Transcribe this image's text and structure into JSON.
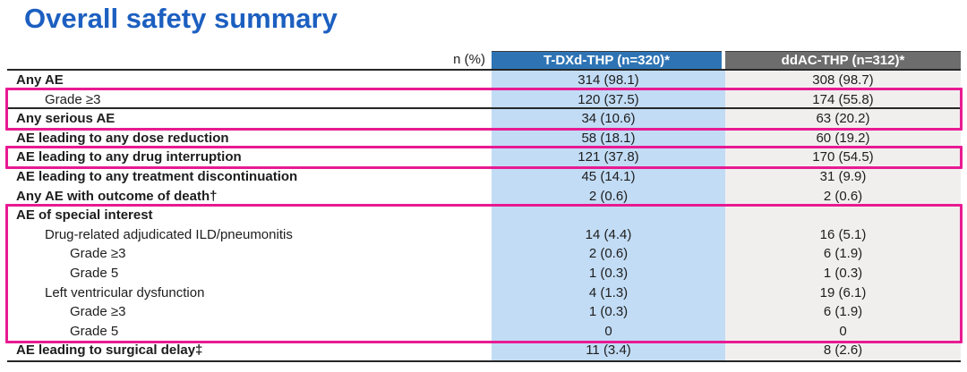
{
  "title": "Overall safety summary",
  "colors": {
    "title_blue": "#1c5fc0",
    "header_blue": "#2e74b5",
    "header_gray": "#6e6d6d",
    "col1_bg": "#c2dcf5",
    "col2_bg": "#f1efee",
    "highlight_pink": "#e81a92",
    "line": "#262626",
    "text": "#1d1d1d"
  },
  "table": {
    "corner_label": "n (%)",
    "columns": [
      {
        "label": "T-DXd-THP (n=320)*"
      },
      {
        "label": "ddAC-THP (n=312)*"
      }
    ],
    "rows": [
      {
        "label": "Any AE",
        "bold": true,
        "indent": 0,
        "values": [
          "314 (98.1)",
          "308 (98.7)"
        ]
      },
      {
        "label": "Grade ≥3",
        "bold": false,
        "indent": 1,
        "values": [
          "120 (37.5)",
          "174 (55.8)"
        ],
        "line_below": true
      },
      {
        "label": "Any serious AE",
        "bold": true,
        "indent": 0,
        "values": [
          "34 (10.6)",
          "63 (20.2)"
        ]
      },
      {
        "label": "AE leading to any dose reduction",
        "bold": true,
        "indent": 0,
        "values": [
          "58 (18.1)",
          "60 (19.2)"
        ]
      },
      {
        "label": "AE leading to any drug interruption",
        "bold": true,
        "indent": 0,
        "values": [
          "121 (37.8)",
          "170 (54.5)"
        ]
      },
      {
        "label": "AE leading to any treatment discontinuation",
        "bold": true,
        "indent": 0,
        "values": [
          "45 (14.1)",
          "31 (9.9)"
        ]
      },
      {
        "label": "Any AE with outcome of death†",
        "bold": true,
        "indent": 0,
        "values": [
          "2 (0.6)",
          "2 (0.6)"
        ]
      },
      {
        "label": "AE of special interest",
        "bold": true,
        "indent": 0,
        "values": [
          "",
          ""
        ]
      },
      {
        "label": "Drug-related adjudicated ILD/pneumonitis",
        "bold": false,
        "indent": 1,
        "values": [
          "14 (4.4)",
          "16 (5.1)"
        ]
      },
      {
        "label": "Grade ≥3",
        "bold": false,
        "indent": 2,
        "values": [
          "2 (0.6)",
          "6 (1.9)"
        ]
      },
      {
        "label": "Grade 5",
        "bold": false,
        "indent": 2,
        "values": [
          "1 (0.3)",
          "1 (0.3)"
        ]
      },
      {
        "label": "Left ventricular dysfunction",
        "bold": false,
        "indent": 1,
        "values": [
          "4 (1.3)",
          "19 (6.1)"
        ]
      },
      {
        "label": "Grade ≥3",
        "bold": false,
        "indent": 2,
        "values": [
          "1 (0.3)",
          "6 (1.9)"
        ]
      },
      {
        "label": "Grade 5",
        "bold": false,
        "indent": 2,
        "values": [
          "0",
          "0"
        ]
      },
      {
        "label": "AE leading to surgical delay‡",
        "bold": true,
        "indent": 0,
        "values": [
          "11 (3.4)",
          "8 (2.6)"
        ]
      }
    ],
    "highlights": [
      {
        "name": "highlight-grade3-serious-ae",
        "start": 1,
        "end": 2
      },
      {
        "name": "highlight-drug-interruption",
        "start": 4,
        "end": 4
      },
      {
        "name": "highlight-ae-special-interest",
        "start": 7,
        "end": 13
      }
    ]
  }
}
